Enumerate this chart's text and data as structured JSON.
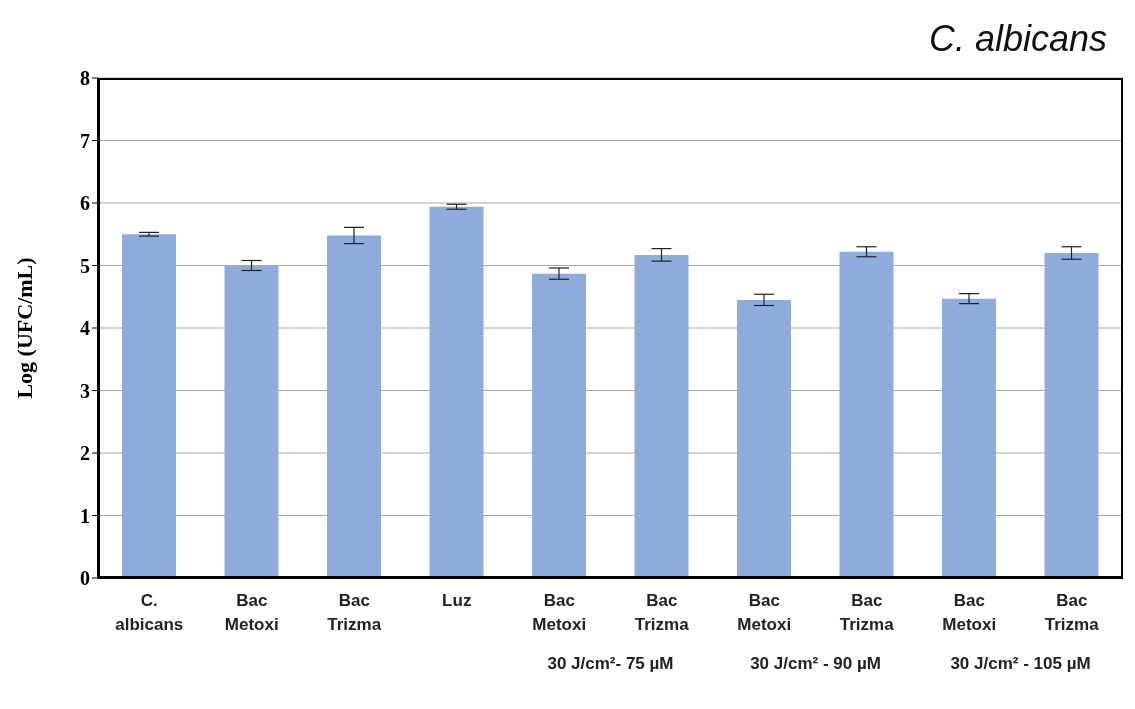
{
  "chart_data": {
    "type": "bar",
    "title": "C. albicans",
    "ylabel": "Log (UFC/mL)",
    "categories": [
      "C. albicans",
      "Bac Metoxi",
      "Bac Trizma",
      "Luz",
      "Bac Metoxi",
      "Bac Trizma",
      "Bac Metoxi",
      "Bac Trizma",
      "Bac Metoxi",
      "Bac Trizma"
    ],
    "values": [
      5.5,
      5.0,
      5.48,
      5.94,
      4.87,
      5.17,
      4.45,
      5.22,
      4.47,
      5.2
    ],
    "errors": [
      0.03,
      0.08,
      0.13,
      0.04,
      0.09,
      0.1,
      0.09,
      0.08,
      0.08,
      0.1
    ],
    "color": "#8eabdc",
    "ylim": [
      0,
      8
    ],
    "yticks": [
      0,
      1,
      2,
      3,
      4,
      5,
      6,
      7,
      8
    ],
    "grid": "y",
    "legend": false,
    "annotations": [
      "30 J/cm²- 75 µM",
      "30 J/cm² - 90 µM",
      "30 J/cm² - 105 µM"
    ]
  }
}
